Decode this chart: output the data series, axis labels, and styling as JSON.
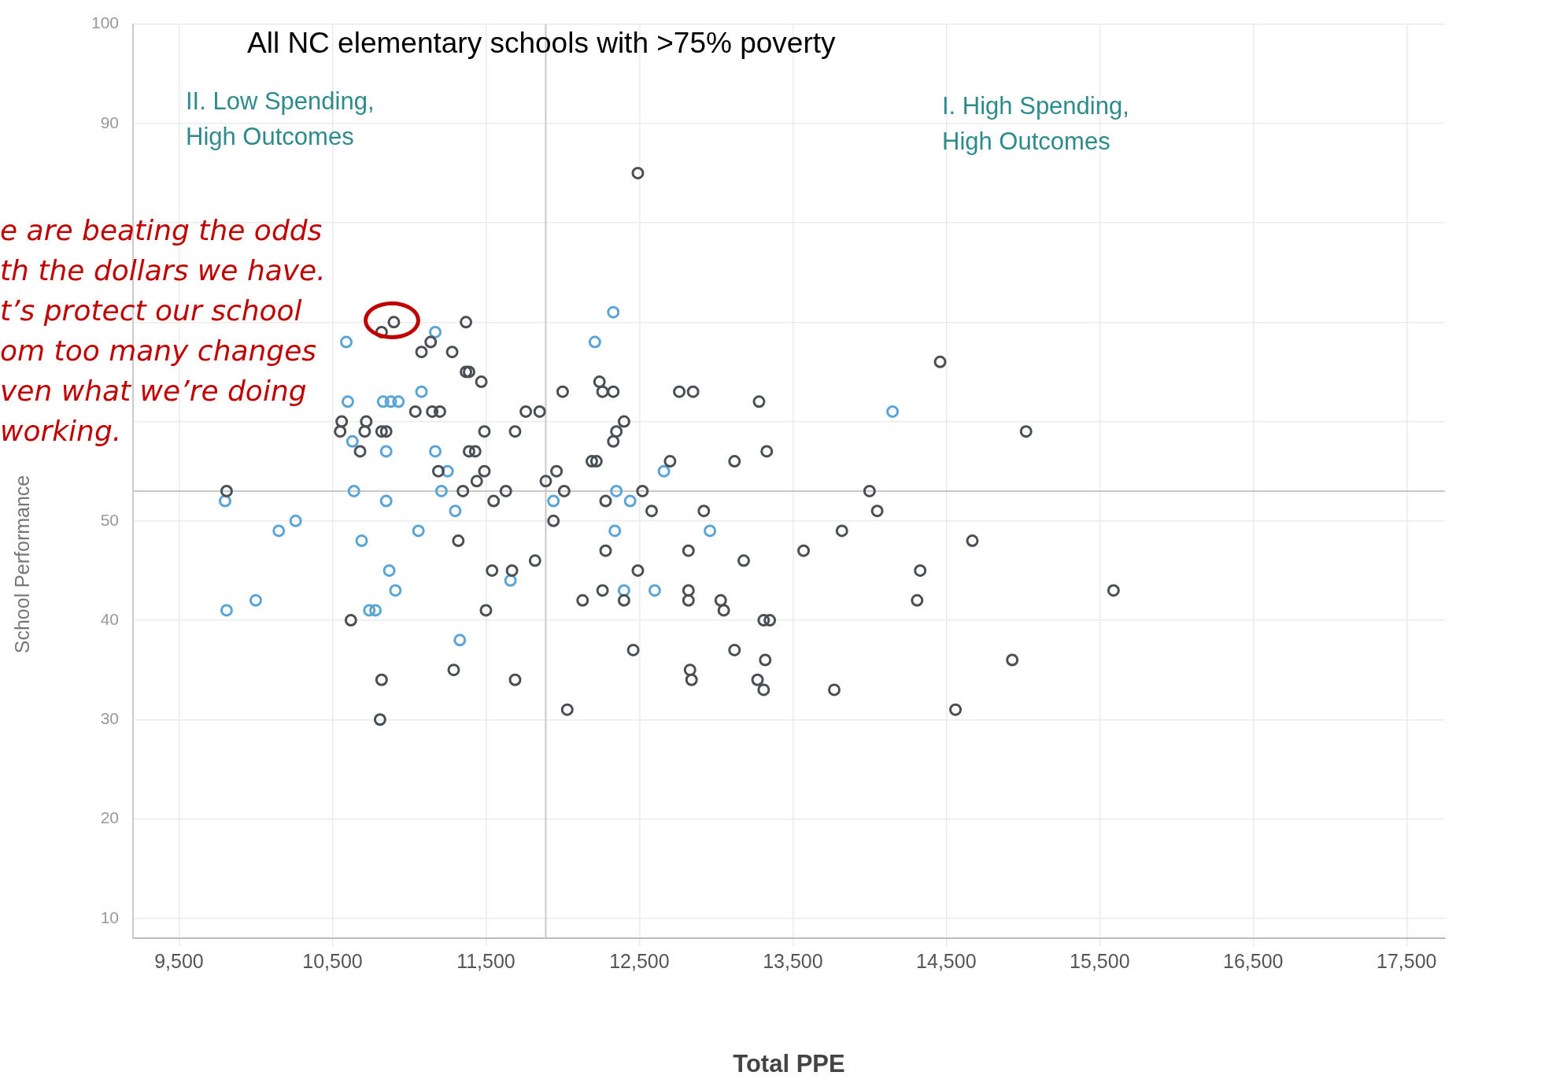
{
  "chart_data": {
    "type": "scatter",
    "title": "All NC elementary schools with >75% poverty",
    "xlabel": "Total PPE",
    "ylabel": "School Performance",
    "annotations": [
      "II. Low Spending,\nHigh Outcomes",
      "I. High Spending,\nHigh Outcomes",
      "e are beating the odds\nth the dollars we have.\nt’s protect our school\nom too many changes\nven what we’re doing\nworking."
    ],
    "xlim": [
      9200,
      17750
    ],
    "ylim": [
      8,
      100
    ],
    "xticks": [
      {
        "value": 9500,
        "label": "9,500"
      },
      {
        "value": 10500,
        "label": "10,500"
      },
      {
        "value": 11500,
        "label": "11,500"
      },
      {
        "value": 12500,
        "label": "12,500"
      },
      {
        "value": 13500,
        "label": "13,500"
      },
      {
        "value": 14500,
        "label": "14,500"
      },
      {
        "value": 15500,
        "label": "15,500"
      },
      {
        "value": 16500,
        "label": "16,500"
      },
      {
        "value": 17500,
        "label": "17,500"
      }
    ],
    "yticks": [
      10,
      20,
      30,
      40,
      50,
      {
        "value": 60,
        "label": null
      },
      {
        "value": 70,
        "label": null
      },
      {
        "value": 80,
        "label": null
      },
      90,
      100
    ],
    "grid": true,
    "legend": false,
    "marker": "circle",
    "ref_lines": [
      {
        "axis": "y",
        "value": 53,
        "color": "#c8c8c8"
      },
      {
        "axis": "x",
        "value": 11890,
        "color": "#c8c8c8"
      }
    ],
    "series": [
      {
        "color": "#4a4f55",
        "x": [
          10900,
          12490,
          11370,
          10820,
          11140,
          11080,
          11280,
          14460,
          11370,
          11390,
          11470,
          12240,
          12000,
          12260,
          12330,
          12760,
          12850,
          13280,
          11040,
          11150,
          11200,
          11760,
          11850,
          12400,
          10560,
          10720,
          10550,
          10710,
          10820,
          10850,
          11490,
          11690,
          12350,
          15020,
          12330,
          10680,
          11390,
          11430,
          13330,
          12190,
          12220,
          12700,
          13120,
          11190,
          11490,
          11960,
          11440,
          11890,
          9810,
          11350,
          11630,
          12010,
          12520,
          14000,
          11550,
          12280,
          12580,
          12920,
          14050,
          11940,
          13820,
          11320,
          14670,
          12280,
          12820,
          13570,
          11820,
          13180,
          11540,
          11670,
          12490,
          14330,
          12260,
          12820,
          15590,
          12130,
          12400,
          12820,
          13030,
          14310,
          11500,
          13050,
          10620,
          13310,
          13350,
          12460,
          13120,
          13320,
          14930,
          11290,
          12830,
          10820,
          11690,
          12840,
          13270,
          13310,
          13770,
          12030,
          14560,
          10810
        ],
        "values": [
          70,
          85,
          70,
          69,
          68,
          67,
          67,
          66,
          65,
          65,
          64,
          64,
          63,
          63,
          63,
          63,
          63,
          62,
          61,
          61,
          61,
          61,
          61,
          60,
          60,
          60,
          59,
          59,
          59,
          59,
          59,
          59,
          59,
          59,
          58,
          57,
          57,
          57,
          57,
          56,
          56,
          56,
          56,
          55,
          55,
          55,
          54,
          54,
          53,
          53,
          53,
          53,
          53,
          53,
          52,
          52,
          51,
          51,
          51,
          50,
          49,
          48,
          48,
          47,
          47,
          47,
          46,
          46,
          45,
          45,
          45,
          45,
          43,
          43,
          43,
          42,
          42,
          42,
          42,
          42,
          41,
          41,
          40,
          40,
          40,
          37,
          37,
          36,
          36,
          35,
          35,
          34,
          34,
          34,
          34,
          33,
          33,
          31,
          31,
          30
        ]
      },
      {
        "color": "#5aa5d6",
        "x": [
          12330,
          11170,
          10590,
          12210,
          11080,
          10600,
          10830,
          10880,
          10930,
          14150,
          10630,
          10850,
          11170,
          11250,
          12660,
          10640,
          11210,
          12350,
          9800,
          10850,
          11940,
          12440,
          11300,
          10260,
          10150,
          11060,
          12340,
          12960,
          10690,
          10870,
          11660,
          10910,
          12400,
          12600,
          10000,
          9810,
          10740,
          10780,
          11330
        ],
        "values": [
          71,
          69,
          68,
          68,
          63,
          62,
          62,
          62,
          62,
          61,
          58,
          57,
          57,
          55,
          55,
          53,
          53,
          53,
          52,
          52,
          52,
          52,
          51,
          50,
          49,
          49,
          49,
          49,
          48,
          45,
          44,
          43,
          43,
          43,
          42,
          41,
          41,
          41,
          38
        ]
      }
    ]
  }
}
